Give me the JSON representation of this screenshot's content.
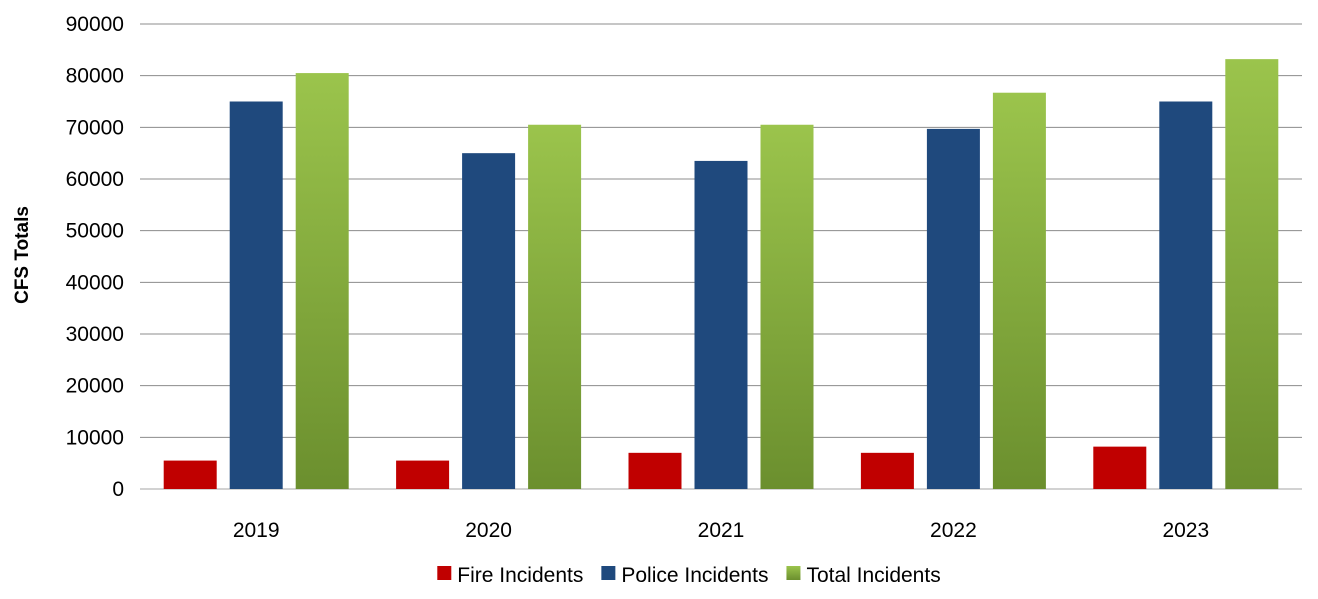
{
  "chart_data": {
    "type": "bar",
    "title": "",
    "xlabel": "",
    "ylabel": "CFS Totals",
    "ylim": [
      0,
      90000
    ],
    "yticks": [
      0,
      10000,
      20000,
      30000,
      40000,
      50000,
      60000,
      70000,
      80000,
      90000
    ],
    "grid": true,
    "legend_position": "bottom",
    "categories": [
      "2019",
      "2020",
      "2021",
      "2022",
      "2023"
    ],
    "series": [
      {
        "name": "Fire Incidents",
        "color": "#c00000",
        "values": [
          5500,
          5500,
          7000,
          7000,
          8200
        ]
      },
      {
        "name": "Police Incidents",
        "color": "#1f497d",
        "values": [
          75000,
          65000,
          63500,
          69700,
          75000
        ]
      },
      {
        "name": "Total Incidents",
        "color": "#9bc44c",
        "color_dark": "#6b8f2e",
        "values": [
          80500,
          70500,
          70500,
          76700,
          83200
        ]
      }
    ]
  }
}
